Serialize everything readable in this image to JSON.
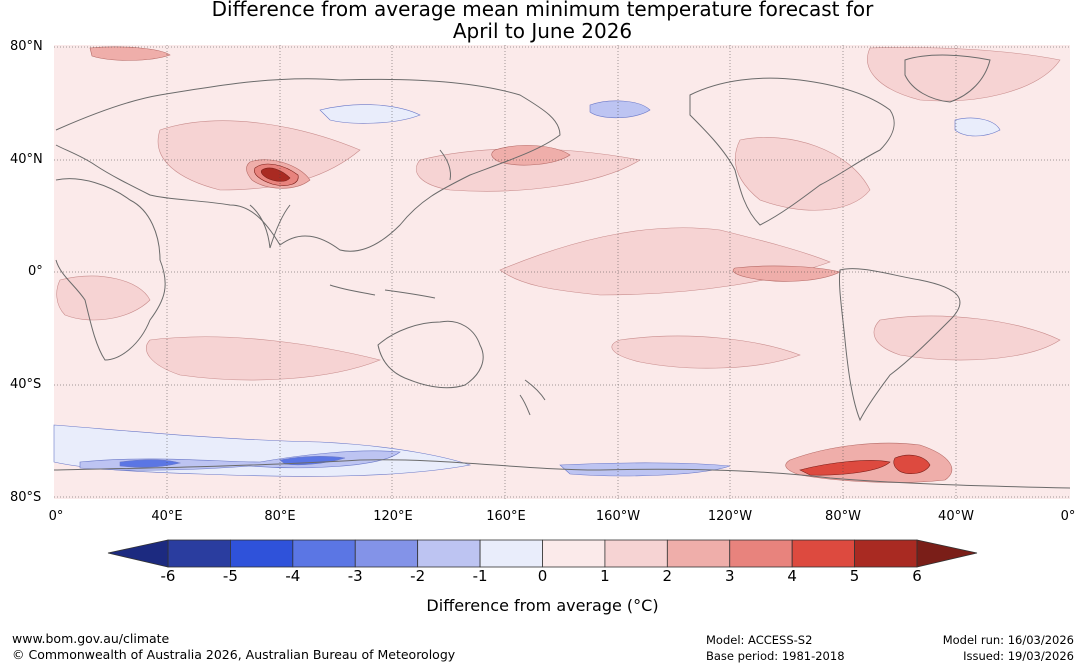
{
  "title": {
    "line1": "Difference from average mean minimum temperature forecast for",
    "line2": "April to June 2026"
  },
  "map": {
    "lat_labels": [
      "80°N",
      "40°N",
      "0°",
      "40°S",
      "80°S"
    ],
    "lon_labels": [
      "0°",
      "40°E",
      "80°E",
      "120°E",
      "160°E",
      "160°W",
      "120°W",
      "80°W",
      "40°W",
      "0°"
    ]
  },
  "colorbar": {
    "title": "Difference from average (°C)",
    "tick_labels": [
      "-6",
      "-5",
      "-4",
      "-3",
      "-2",
      "-1",
      "0",
      "1",
      "2",
      "3",
      "4",
      "5",
      "6"
    ],
    "colors": [
      "#2a3d9f",
      "#2f52da",
      "#5b76e4",
      "#8393e8",
      "#bdc4f2",
      "#e9edfb",
      "#fbeaea",
      "#f6d3d3",
      "#efaeaa",
      "#e8837d",
      "#dd4a3f",
      "#a92a22"
    ],
    "low_extend_color": "#1c2a80",
    "high_extend_color": "#7a1e18"
  },
  "footer": {
    "url": "www.bom.gov.au/climate",
    "copyright": "© Commonwealth of Australia 2026, Australian Bureau of Meteorology",
    "model": "Model: ACCESS-S2",
    "base_period": "Base period: 1981-2018",
    "model_run": "Model run: 16/03/2026",
    "issued": "Issued: 19/03/2026"
  }
}
